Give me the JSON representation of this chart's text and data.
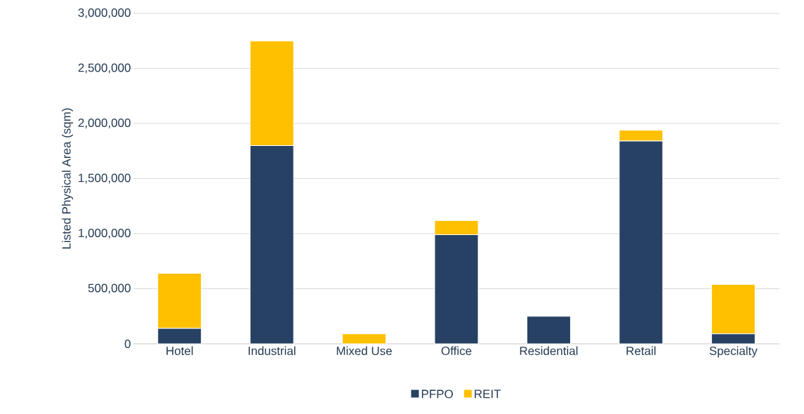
{
  "chart_data": {
    "type": "bar",
    "stacked": true,
    "ylabel": "Listed Physical Area (sqm)",
    "categories": [
      "Hotel",
      "Industrial",
      "Mixed Use",
      "Office",
      "Residential",
      "Retail",
      "Specialty"
    ],
    "series": [
      {
        "name": "PFPO",
        "color": "#264163",
        "values": [
          140000,
          1800000,
          0,
          990000,
          250000,
          1840000,
          90000
        ]
      },
      {
        "name": "REIT",
        "color": "#ffc000",
        "values": [
          500000,
          950000,
          90000,
          130000,
          0,
          100000,
          450000
        ]
      }
    ],
    "ylim": [
      0,
      3000000
    ],
    "yticks": [
      {
        "value": 0,
        "label": "0"
      },
      {
        "value": 500000,
        "label": "500,000"
      },
      {
        "value": 1000000,
        "label": "1,000,000"
      },
      {
        "value": 1500000,
        "label": "1,500,000"
      },
      {
        "value": 2000000,
        "label": "2,000,000"
      },
      {
        "value": 2500000,
        "label": "2,500,000"
      },
      {
        "value": 3000000,
        "label": "3,000,000"
      }
    ],
    "grid": "y",
    "legend": "bottom"
  }
}
